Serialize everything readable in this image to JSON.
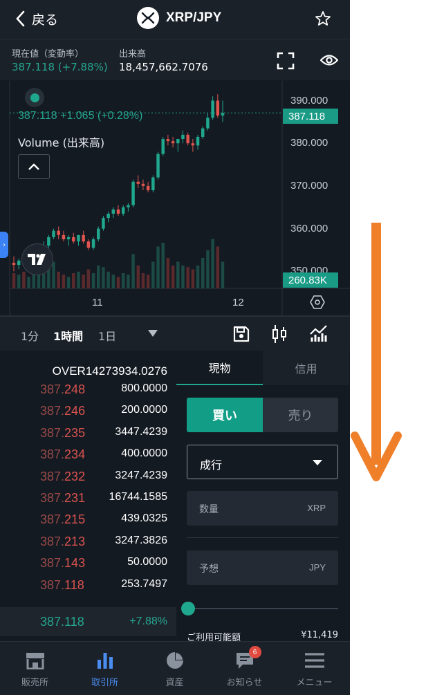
{
  "header": {
    "back_label": "戻る",
    "title": "XRP/JPY"
  },
  "info": {
    "price_label": "現在値（変動率）",
    "price_value": "387.118 (+7.88%)",
    "volume_label": "出来高",
    "volume_value": "18,457,662.7076"
  },
  "chart": {
    "overlay_price": "387.118 +1.065 (+0.28%)",
    "volume_label": "Volume (出来高)",
    "current_price_tag": "387.118",
    "volume_tag": "260.83K",
    "y_ticks": [
      "390.000",
      "380.000",
      "370.000",
      "360.000",
      "350.000"
    ],
    "x_ticks": [
      "11",
      "12"
    ]
  },
  "chart_data": {
    "type": "candlestick",
    "ylim": [
      346,
      393
    ],
    "y_ticks": [
      390,
      380,
      370,
      360,
      350
    ],
    "x_tick_labels": [
      "11",
      "12"
    ],
    "candles": [
      {
        "o": 352.0,
        "h": 353.5,
        "l": 350.0,
        "c": 351.5,
        "v": 0.2
      },
      {
        "o": 351.5,
        "h": 353.0,
        "l": 350.5,
        "c": 352.5,
        "v": 0.18
      },
      {
        "o": 352.5,
        "h": 354.0,
        "l": 351.5,
        "c": 352.0,
        "v": 0.22
      },
      {
        "o": 352.0,
        "h": 353.5,
        "l": 351.0,
        "c": 353.0,
        "v": 0.15
      },
      {
        "o": 353.0,
        "h": 355.0,
        "l": 352.0,
        "c": 354.0,
        "v": 0.2
      },
      {
        "o": 354.0,
        "h": 356.0,
        "l": 353.5,
        "c": 355.5,
        "v": 0.25
      },
      {
        "o": 355.5,
        "h": 357.0,
        "l": 355.0,
        "c": 356.0,
        "v": 0.2
      },
      {
        "o": 356.0,
        "h": 358.5,
        "l": 355.5,
        "c": 358.0,
        "v": 0.28
      },
      {
        "o": 358.0,
        "h": 360.0,
        "l": 357.5,
        "c": 359.5,
        "v": 0.35
      },
      {
        "o": 359.5,
        "h": 360.5,
        "l": 357.5,
        "c": 358.5,
        "v": 0.22
      },
      {
        "o": 358.5,
        "h": 359.5,
        "l": 357.0,
        "c": 357.5,
        "v": 0.18
      },
      {
        "o": 357.5,
        "h": 358.5,
        "l": 356.0,
        "c": 358.0,
        "v": 0.15
      },
      {
        "o": 358.0,
        "h": 359.0,
        "l": 356.5,
        "c": 357.0,
        "v": 0.2
      },
      {
        "o": 357.0,
        "h": 358.5,
        "l": 356.0,
        "c": 358.5,
        "v": 0.22
      },
      {
        "o": 358.5,
        "h": 359.5,
        "l": 356.5,
        "c": 357.0,
        "v": 0.18
      },
      {
        "o": 357.0,
        "h": 357.5,
        "l": 355.0,
        "c": 355.5,
        "v": 0.25
      },
      {
        "o": 355.5,
        "h": 358.0,
        "l": 355.0,
        "c": 357.5,
        "v": 0.2
      },
      {
        "o": 357.5,
        "h": 360.5,
        "l": 357.0,
        "c": 360.0,
        "v": 0.3
      },
      {
        "o": 360.0,
        "h": 363.0,
        "l": 359.5,
        "c": 362.5,
        "v": 0.28
      },
      {
        "o": 362.5,
        "h": 364.0,
        "l": 361.5,
        "c": 363.5,
        "v": 0.22
      },
      {
        "o": 363.5,
        "h": 365.0,
        "l": 362.5,
        "c": 364.5,
        "v": 0.18
      },
      {
        "o": 364.5,
        "h": 365.5,
        "l": 363.0,
        "c": 363.5,
        "v": 0.15
      },
      {
        "o": 363.5,
        "h": 365.5,
        "l": 363.0,
        "c": 365.0,
        "v": 0.2
      },
      {
        "o": 365.0,
        "h": 366.0,
        "l": 364.0,
        "c": 365.5,
        "v": 0.18
      },
      {
        "o": 365.5,
        "h": 371.5,
        "l": 365.0,
        "c": 371.0,
        "v": 0.45
      },
      {
        "o": 371.0,
        "h": 372.5,
        "l": 369.5,
        "c": 370.5,
        "v": 0.3
      },
      {
        "o": 370.5,
        "h": 371.5,
        "l": 369.0,
        "c": 370.0,
        "v": 0.2
      },
      {
        "o": 370.0,
        "h": 371.0,
        "l": 368.5,
        "c": 369.0,
        "v": 0.18
      },
      {
        "o": 369.0,
        "h": 372.5,
        "l": 368.5,
        "c": 372.0,
        "v": 0.35
      },
      {
        "o": 372.0,
        "h": 378.0,
        "l": 371.5,
        "c": 377.5,
        "v": 0.55
      },
      {
        "o": 377.5,
        "h": 381.5,
        "l": 377.0,
        "c": 381.0,
        "v": 0.6
      },
      {
        "o": 381.0,
        "h": 382.0,
        "l": 379.5,
        "c": 380.5,
        "v": 0.4
      },
      {
        "o": 380.5,
        "h": 381.5,
        "l": 379.0,
        "c": 380.0,
        "v": 0.3
      },
      {
        "o": 380.0,
        "h": 381.0,
        "l": 378.0,
        "c": 381.0,
        "v": 0.35
      },
      {
        "o": 381.0,
        "h": 383.0,
        "l": 380.0,
        "c": 382.0,
        "v": 0.3
      },
      {
        "o": 382.0,
        "h": 382.5,
        "l": 379.5,
        "c": 380.0,
        "v": 0.28
      },
      {
        "o": 380.0,
        "h": 381.0,
        "l": 378.0,
        "c": 379.5,
        "v": 0.25
      },
      {
        "o": 379.5,
        "h": 382.0,
        "l": 378.5,
        "c": 381.5,
        "v": 0.3
      },
      {
        "o": 381.5,
        "h": 384.0,
        "l": 381.0,
        "c": 383.5,
        "v": 0.4
      },
      {
        "o": 383.5,
        "h": 387.0,
        "l": 383.0,
        "c": 386.0,
        "v": 0.5
      },
      {
        "o": 386.0,
        "h": 391.0,
        "l": 385.5,
        "c": 390.0,
        "v": 0.65
      },
      {
        "o": 390.0,
        "h": 391.5,
        "l": 386.0,
        "c": 386.5,
        "v": 0.55
      },
      {
        "o": 386.5,
        "h": 390.0,
        "l": 385.0,
        "c": 387.1,
        "v": 0.35
      }
    ],
    "colors": {
      "up": "#20a88e",
      "down": "#e0554f",
      "volume_up": "#1c4a44",
      "volume_down": "#5a2a2c"
    }
  },
  "timeframes": {
    "opt1": "1分",
    "opt2": "1時間",
    "opt3": "1日"
  },
  "orderbook": {
    "over": "OVER14273934.0276",
    "asks": [
      {
        "pfx": "387.",
        "sfx": "248",
        "qty": "800.0000"
      },
      {
        "pfx": "387.",
        "sfx": "246",
        "qty": "200.0000"
      },
      {
        "pfx": "387.",
        "sfx": "235",
        "qty": "3447.4239"
      },
      {
        "pfx": "387.",
        "sfx": "234",
        "qty": "400.0000"
      },
      {
        "pfx": "387.",
        "sfx": "232",
        "qty": "3247.4239"
      },
      {
        "pfx": "387.",
        "sfx": "231",
        "qty": "16744.1585"
      },
      {
        "pfx": "387.",
        "sfx": "215",
        "qty": "439.0325"
      },
      {
        "pfx": "387.",
        "sfx": "213",
        "qty": "3247.3826"
      },
      {
        "pfx": "387.",
        "sfx": "143",
        "qty": "50.0000"
      },
      {
        "pfx": "387.",
        "sfx": "118",
        "qty": "253.7497"
      }
    ],
    "last_price": "387.118",
    "last_change": "+7.88%"
  },
  "order": {
    "tab_spot": "現物",
    "tab_margin": "信用",
    "buy_label": "買い",
    "sell_label": "売り",
    "order_type": "成行",
    "qty_placeholder": "数量",
    "qty_unit": "XRP",
    "estimate_placeholder": "予想",
    "estimate_unit": "JPY",
    "available_label": "ご利用可能額",
    "available_value": "¥11,419",
    "slider_fraction": 0
  },
  "nav": {
    "items": [
      {
        "label": "販売所"
      },
      {
        "label": "取引所"
      },
      {
        "label": "資産"
      },
      {
        "label": "お知らせ",
        "badge": "6"
      },
      {
        "label": "メニュー"
      }
    ]
  },
  "colors": {
    "accent": "#20a88e",
    "ask": "#d9534f",
    "nav_active": "#4a8cf0",
    "arrow": "#f07f2a"
  }
}
